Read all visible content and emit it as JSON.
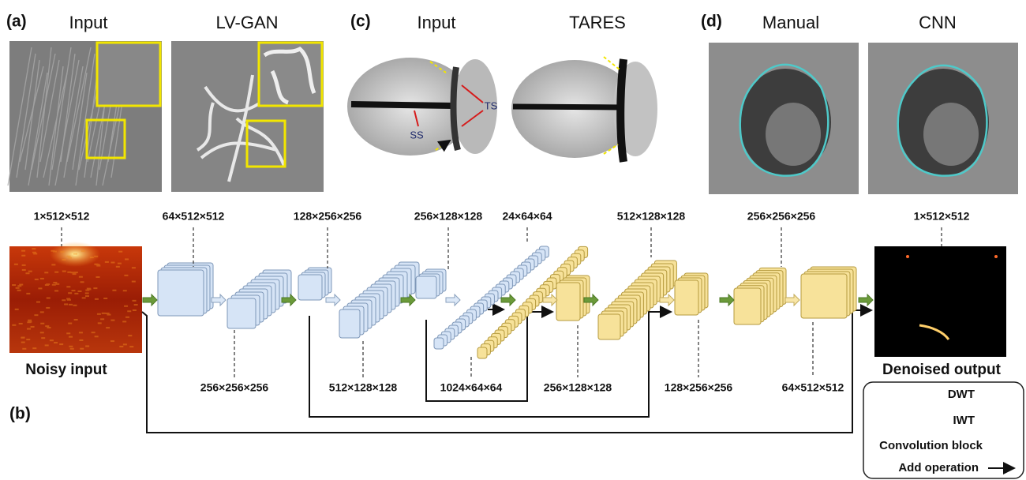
{
  "panel_a": {
    "label": "(a)",
    "titles": [
      "Input",
      "LV-GAN"
    ]
  },
  "panel_c": {
    "label": "(c)",
    "titles": [
      "Input",
      "TARES"
    ],
    "annotations": [
      "SS",
      "TS"
    ]
  },
  "panel_d": {
    "label": "(d)",
    "titles": [
      "Manual",
      "CNN"
    ]
  },
  "panel_b": {
    "label": "(b)",
    "input_label": "Noisy input",
    "output_label": "Denoised output",
    "top_dims": [
      "1×512×512",
      "64×512×512",
      "128×256×256",
      "256×128×128",
      "24×64×64",
      "512×128×128",
      "256×256×256",
      "1×512×512"
    ],
    "bottom_dims": [
      "256×256×256",
      "512×128×128",
      "1024×64×64",
      "256×128×128",
      "128×256×256",
      "64×512×512"
    ],
    "legend": [
      "DWT",
      "IWT",
      "Convolution block",
      "Add operation"
    ]
  }
}
